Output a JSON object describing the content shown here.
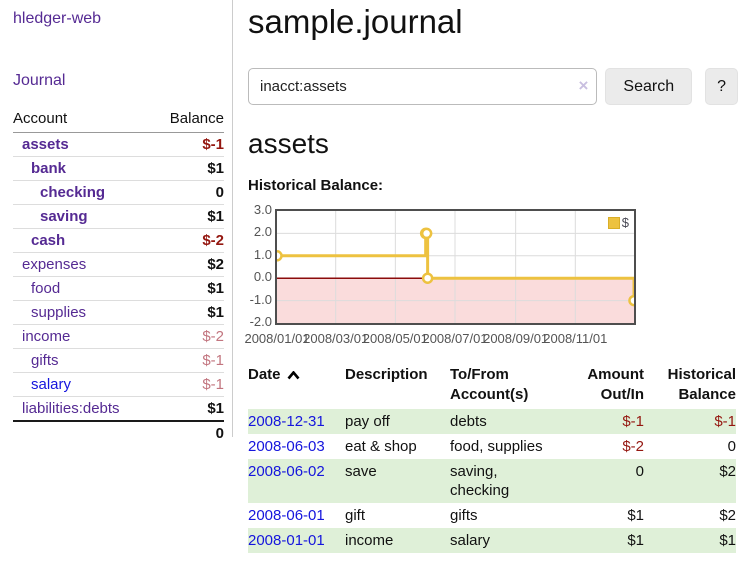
{
  "app": {
    "brand": "hledger-web"
  },
  "nav": {
    "journal": "Journal"
  },
  "sidebar": {
    "headers": {
      "account": "Account",
      "balance": "Balance"
    },
    "rows": [
      {
        "label": "assets",
        "balance": "$-1",
        "indent": 1,
        "bold": true,
        "link": "purple",
        "neg": "dark"
      },
      {
        "label": "bank",
        "balance": "$1",
        "indent": 2,
        "bold": true,
        "link": "purple",
        "neg": "none"
      },
      {
        "label": "checking",
        "balance": "0",
        "indent": 3,
        "bold": true,
        "link": "purple",
        "neg": "none"
      },
      {
        "label": "saving",
        "balance": "$1",
        "indent": 3,
        "bold": true,
        "link": "purple",
        "neg": "none"
      },
      {
        "label": "cash",
        "balance": "$-2",
        "indent": 2,
        "bold": true,
        "link": "purple",
        "neg": "dark"
      },
      {
        "label": "expenses",
        "balance": "$2",
        "indent": 1,
        "bold": false,
        "link": "purple",
        "neg": "none"
      },
      {
        "label": "food",
        "balance": "$1",
        "indent": 2,
        "bold": false,
        "link": "purple",
        "neg": "none"
      },
      {
        "label": "supplies",
        "balance": "$1",
        "indent": 2,
        "bold": false,
        "link": "purple",
        "neg": "none"
      },
      {
        "label": "income",
        "balance": "$-2",
        "indent": 1,
        "bold": false,
        "link": "purple",
        "neg": "light"
      },
      {
        "label": "gifts",
        "balance": "$-1",
        "indent": 2,
        "bold": false,
        "link": "purple",
        "neg": "light"
      },
      {
        "label": "salary",
        "balance": "$-1",
        "indent": 2,
        "bold": false,
        "link": "blue",
        "neg": "light"
      },
      {
        "label": "liabilities:debts",
        "balance": "$1",
        "indent": 1,
        "bold": false,
        "link": "purple",
        "neg": "none"
      }
    ],
    "total": "0"
  },
  "main": {
    "title": "sample.journal",
    "search": {
      "value": "inacct:assets",
      "clear_icon": "×",
      "search_button": "Search",
      "help_button": "?"
    },
    "account_title": "assets",
    "chart_label": "Historical Balance:"
  },
  "register": {
    "headers": {
      "date": "Date",
      "description": "Description",
      "accounts": "To/From Account(s)",
      "amount": "Amount Out/In",
      "balance": "Historical Balance"
    },
    "rows": [
      {
        "date": "2008-12-31",
        "description": "pay off",
        "accounts": "debts",
        "amount": "$-1",
        "balance": "$-1",
        "amount_neg": true,
        "balance_neg": true,
        "shaded": true
      },
      {
        "date": "2008-06-03",
        "description": "eat & shop",
        "accounts": "food, supplies",
        "amount": "$-2",
        "balance": "0",
        "amount_neg": true,
        "balance_neg": false,
        "shaded": false
      },
      {
        "date": "2008-06-02",
        "description": "save",
        "accounts": "saving, checking",
        "amount": "0",
        "balance": "$2",
        "amount_neg": false,
        "balance_neg": false,
        "shaded": true
      },
      {
        "date": "2008-06-01",
        "description": "gift",
        "accounts": "gifts",
        "amount": "$1",
        "balance": "$2",
        "amount_neg": false,
        "balance_neg": false,
        "shaded": false
      },
      {
        "date": "2008-01-01",
        "description": "income",
        "accounts": "salary",
        "amount": "$1",
        "balance": "$1",
        "amount_neg": false,
        "balance_neg": false,
        "shaded": true
      }
    ]
  },
  "chart_data": {
    "type": "line",
    "step": true,
    "title": "Historical Balance",
    "x_range": [
      "2008-01-01",
      "2008-12-31"
    ],
    "y_range": [
      -2,
      3
    ],
    "x_ticks": [
      {
        "value": "2008-01-01",
        "label": "2008/01/01"
      },
      {
        "value": "2008-03-01",
        "label": "2008/03/01"
      },
      {
        "value": "2008-05-01",
        "label": "2008/05/01"
      },
      {
        "value": "2008-07-01",
        "label": "2008/07/01"
      },
      {
        "value": "2008-09-01",
        "label": "2008/09/01"
      },
      {
        "value": "2008-11-01",
        "label": "2008/11/01"
      }
    ],
    "y_ticks": [
      {
        "value": 3,
        "label": "3.0"
      },
      {
        "value": 2,
        "label": "2.0"
      },
      {
        "value": 1,
        "label": "1.0"
      },
      {
        "value": 0,
        "label": "0.0"
      },
      {
        "value": -1,
        "label": "-1.0"
      },
      {
        "value": -2,
        "label": "-2.0"
      }
    ],
    "series": [
      {
        "name": "$",
        "color": "#edc240",
        "points": [
          {
            "x": "2008-01-01",
            "y": 1
          },
          {
            "x": "2008-06-01",
            "y": 2
          },
          {
            "x": "2008-06-02",
            "y": 2
          },
          {
            "x": "2008-06-03",
            "y": 0
          },
          {
            "x": "2008-12-31",
            "y": -1
          }
        ]
      }
    ],
    "legend": [
      {
        "label": "$",
        "color": "#edc240"
      }
    ],
    "legend_position": "top-right",
    "grid": true,
    "grid_color": "#dcdcdc",
    "negative_fill": "#fadcdc",
    "zero_line_color": "#8b0b0b"
  },
  "colors": {
    "link_purple": "#552a93",
    "link_blue": "#1515dd",
    "negative_dark": "#941710",
    "negative_light": "#c2757f",
    "row_green": "#dff0d8",
    "series_yellow": "#edc240"
  }
}
